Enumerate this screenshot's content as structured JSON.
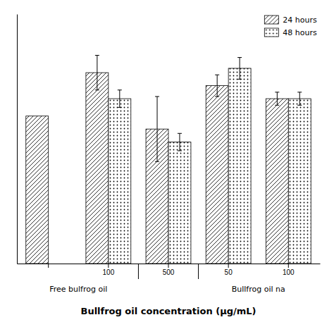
{
  "chart_data": {
    "type": "bar",
    "xlabel": "Bullfrog oil concentration (μg/mL)",
    "categories": [
      null,
      "100",
      "500",
      "50",
      "100"
    ],
    "series": [
      {
        "name": "24 hours",
        "color": "#ffffff",
        "marker": "diagonal",
        "values": [
          0.68,
          0.88,
          0.62,
          0.82,
          0.76
        ],
        "errors": [
          null,
          0.08,
          0.15,
          0.05,
          0.03
        ]
      },
      {
        "name": "48 hours",
        "color": "#ffffff",
        "marker": "dotted",
        "values": [
          null,
          0.76,
          0.56,
          0.9,
          0.76
        ],
        "errors": [
          null,
          0.04,
          0.04,
          0.05,
          0.03
        ]
      }
    ],
    "annotations": [
      "Free bulfrog oil",
      "Bullfrog oil na"
    ],
    "ylim": [
      0,
      1.15
    ],
    "tick_labels": "x",
    "legend": "upper right",
    "grid": false
  }
}
